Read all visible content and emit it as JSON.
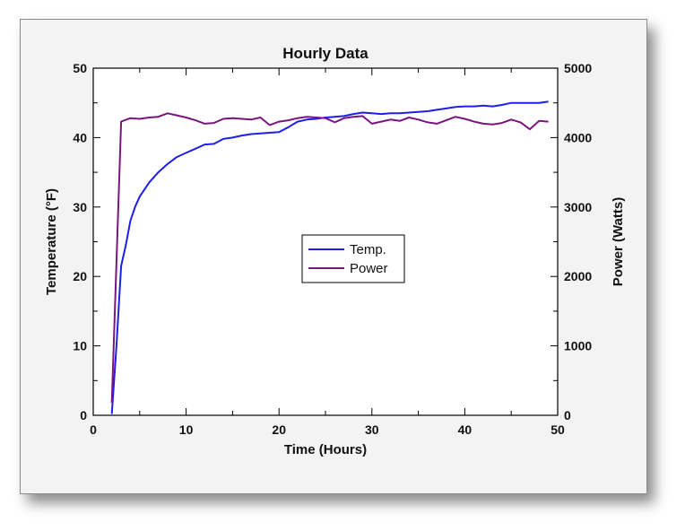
{
  "chart_data": {
    "type": "line",
    "title": "Hourly Data",
    "xlabel": "Time (Hours)",
    "ylabel_left": "Temperature (°F)",
    "ylabel_right": "Power (Watts)",
    "xlim": [
      0,
      50
    ],
    "ylim_left": [
      0,
      50
    ],
    "ylim_right": [
      0,
      5000
    ],
    "x_ticks": [
      "0",
      "10",
      "20",
      "30",
      "40",
      "50"
    ],
    "y_ticks_left": [
      "0",
      "10",
      "20",
      "30",
      "40",
      "50"
    ],
    "y_ticks_right": [
      "0",
      "1000",
      "2000",
      "3000",
      "4000",
      "5000"
    ],
    "grid": false,
    "legend_position": "center-right",
    "series": [
      {
        "name": "Temp.",
        "axis": "left",
        "color": "#1f1fe6",
        "x": [
          2,
          2.5,
          3,
          3.5,
          4,
          4.5,
          5,
          5.5,
          6,
          7,
          8,
          9,
          10,
          11,
          12,
          13,
          14,
          15,
          16,
          17,
          18,
          19,
          20,
          21,
          22,
          23,
          24,
          25,
          26,
          27,
          28,
          29,
          30,
          31,
          32,
          33,
          34,
          35,
          36,
          37,
          38,
          39,
          40,
          41,
          42,
          43,
          44,
          45,
          46,
          47,
          48,
          49
        ],
        "values": [
          0.2,
          10,
          21.5,
          24.5,
          28,
          30,
          31.5,
          32.5,
          33.5,
          35,
          36.2,
          37.2,
          37.8,
          38.4,
          39,
          39.1,
          39.8,
          40,
          40.3,
          40.5,
          40.6,
          40.7,
          40.8,
          41.5,
          42.3,
          42.6,
          42.7,
          42.9,
          43,
          43.1,
          43.4,
          43.6,
          43.5,
          43.4,
          43.5,
          43.5,
          43.6,
          43.7,
          43.8,
          44,
          44.2,
          44.4,
          44.5,
          44.5,
          44.6,
          44.5,
          44.7,
          45,
          45,
          45,
          45,
          45.2
        ]
      },
      {
        "name": "Power",
        "axis": "right",
        "color": "#7a157e",
        "x": [
          2,
          3,
          4,
          5,
          6,
          7,
          8,
          9,
          10,
          11,
          12,
          13,
          14,
          15,
          16,
          17,
          18,
          19,
          20,
          21,
          22,
          23,
          24,
          25,
          26,
          27,
          28,
          29,
          30,
          31,
          32,
          33,
          34,
          35,
          36,
          37,
          38,
          39,
          40,
          41,
          42,
          43,
          44,
          45,
          46,
          47,
          48,
          49
        ],
        "values": [
          180,
          4230,
          4280,
          4270,
          4290,
          4300,
          4350,
          4320,
          4290,
          4250,
          4200,
          4210,
          4270,
          4280,
          4270,
          4260,
          4290,
          4180,
          4230,
          4250,
          4280,
          4300,
          4290,
          4280,
          4220,
          4280,
          4300,
          4310,
          4200,
          4230,
          4260,
          4240,
          4290,
          4260,
          4220,
          4200,
          4250,
          4300,
          4270,
          4230,
          4200,
          4190,
          4210,
          4260,
          4220,
          4120,
          4240,
          4230
        ]
      }
    ]
  }
}
